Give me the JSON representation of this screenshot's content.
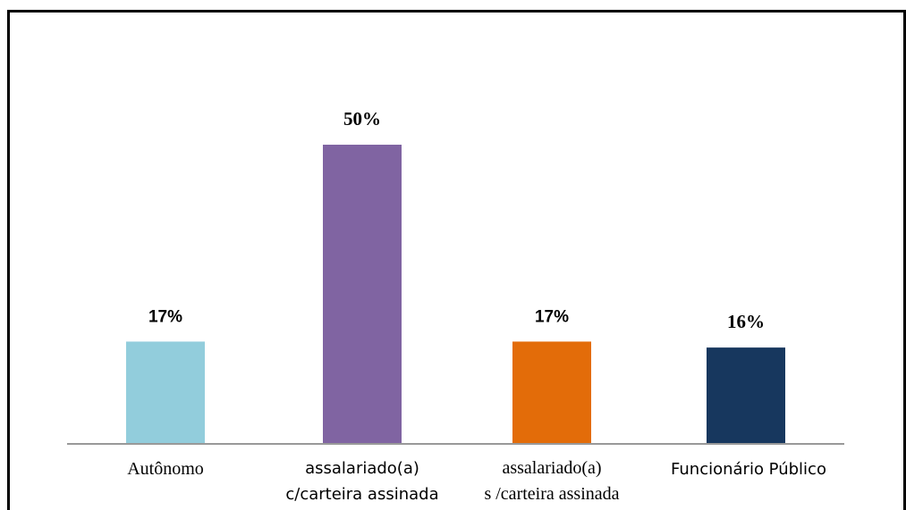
{
  "chart_data": {
    "type": "bar",
    "title": "",
    "xlabel": "",
    "ylabel": "",
    "ylim": [
      0,
      60
    ],
    "categories": [
      [
        "Autônomo"
      ],
      [
        "assalariado(a)",
        "c/carteira assinada"
      ],
      [
        "assalariado(a)",
        "s /carteira assinada"
      ],
      [
        "Funcionário Público"
      ]
    ],
    "values": [
      17,
      50,
      17,
      16
    ],
    "data_labels": [
      "17%",
      "50%",
      "17%",
      "16%"
    ],
    "colors": [
      "#92cddc",
      "#8064a2",
      "#e36c09",
      "#17375e"
    ],
    "grid": false,
    "legend": "none"
  }
}
